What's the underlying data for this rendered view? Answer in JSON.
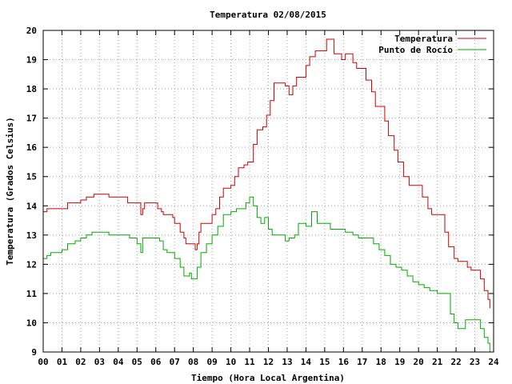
{
  "chart_data": {
    "type": "line",
    "title": "Temperatura 02/08/2015",
    "xlabel": "Tiempo (Hora Local Argentina)",
    "ylabel": "Temperatura (Grados Celsius)",
    "xlim": [
      0,
      24
    ],
    "ylim": [
      9,
      20
    ],
    "x_ticks": [
      "00",
      "01",
      "02",
      "03",
      "04",
      "05",
      "06",
      "07",
      "08",
      "09",
      "10",
      "11",
      "12",
      "13",
      "14",
      "15",
      "16",
      "17",
      "18",
      "19",
      "20",
      "21",
      "22",
      "23",
      "24"
    ],
    "y_ticks": [
      "9",
      "10",
      "11",
      "12",
      "13",
      "14",
      "15",
      "16",
      "17",
      "18",
      "19",
      "20"
    ],
    "grid": true,
    "legend_position": "top-right",
    "series": [
      {
        "name": "Temperatura",
        "color": "#cc0000",
        "points": [
          [
            0.0,
            13.8
          ],
          [
            0.2,
            13.9
          ],
          [
            0.5,
            13.9
          ],
          [
            1.0,
            13.9
          ],
          [
            1.3,
            14.1
          ],
          [
            1.8,
            14.1
          ],
          [
            2.0,
            14.2
          ],
          [
            2.3,
            14.3
          ],
          [
            2.7,
            14.4
          ],
          [
            3.0,
            14.4
          ],
          [
            3.4,
            14.4
          ],
          [
            3.5,
            14.3
          ],
          [
            4.0,
            14.3
          ],
          [
            4.4,
            14.3
          ],
          [
            4.5,
            14.1
          ],
          [
            5.0,
            14.1
          ],
          [
            5.2,
            13.7
          ],
          [
            5.3,
            13.9
          ],
          [
            5.4,
            14.1
          ],
          [
            5.6,
            14.1
          ],
          [
            6.0,
            14.1
          ],
          [
            6.1,
            13.9
          ],
          [
            6.3,
            13.8
          ],
          [
            6.4,
            13.7
          ],
          [
            6.9,
            13.6
          ],
          [
            7.0,
            13.4
          ],
          [
            7.3,
            13.1
          ],
          [
            7.5,
            12.9
          ],
          [
            7.6,
            12.7
          ],
          [
            8.0,
            12.7
          ],
          [
            8.1,
            12.5
          ],
          [
            8.2,
            12.7
          ],
          [
            8.3,
            13.1
          ],
          [
            8.4,
            13.4
          ],
          [
            8.8,
            13.4
          ],
          [
            9.0,
            13.7
          ],
          [
            9.2,
            13.9
          ],
          [
            9.4,
            14.3
          ],
          [
            9.6,
            14.6
          ],
          [
            10.0,
            14.7
          ],
          [
            10.2,
            15.0
          ],
          [
            10.4,
            15.3
          ],
          [
            10.7,
            15.4
          ],
          [
            10.9,
            15.5
          ],
          [
            11.2,
            16.1
          ],
          [
            11.4,
            16.6
          ],
          [
            11.7,
            16.7
          ],
          [
            11.9,
            17.1
          ],
          [
            12.1,
            17.6
          ],
          [
            12.3,
            18.2
          ],
          [
            12.6,
            18.2
          ],
          [
            12.9,
            18.1
          ],
          [
            13.1,
            17.8
          ],
          [
            13.3,
            18.1
          ],
          [
            13.5,
            18.4
          ],
          [
            13.8,
            18.4
          ],
          [
            14.0,
            18.8
          ],
          [
            14.2,
            19.1
          ],
          [
            14.5,
            19.3
          ],
          [
            14.8,
            19.3
          ],
          [
            15.0,
            19.3
          ],
          [
            15.1,
            19.7
          ],
          [
            15.3,
            19.7
          ],
          [
            15.5,
            19.2
          ],
          [
            15.7,
            19.2
          ],
          [
            15.9,
            19.0
          ],
          [
            16.1,
            19.2
          ],
          [
            16.3,
            19.2
          ],
          [
            16.5,
            18.9
          ],
          [
            16.7,
            18.7
          ],
          [
            17.0,
            18.7
          ],
          [
            17.2,
            18.3
          ],
          [
            17.5,
            17.9
          ],
          [
            17.7,
            17.4
          ],
          [
            18.0,
            17.4
          ],
          [
            18.2,
            16.9
          ],
          [
            18.4,
            16.4
          ],
          [
            18.7,
            15.9
          ],
          [
            18.9,
            15.5
          ],
          [
            19.2,
            15.0
          ],
          [
            19.5,
            14.7
          ],
          [
            20.0,
            14.7
          ],
          [
            20.2,
            14.3
          ],
          [
            20.5,
            13.9
          ],
          [
            20.7,
            13.7
          ],
          [
            21.2,
            13.7
          ],
          [
            21.4,
            13.1
          ],
          [
            21.6,
            12.6
          ],
          [
            21.9,
            12.2
          ],
          [
            22.1,
            12.1
          ],
          [
            22.5,
            12.1
          ],
          [
            22.6,
            11.9
          ],
          [
            22.8,
            11.8
          ],
          [
            23.2,
            11.8
          ],
          [
            23.3,
            11.5
          ],
          [
            23.5,
            11.1
          ],
          [
            23.7,
            10.8
          ],
          [
            23.8,
            10.5
          ]
        ]
      },
      {
        "name": "Punto de Rocío",
        "color": "#00aa00",
        "points": [
          [
            0.0,
            12.2
          ],
          [
            0.2,
            12.3
          ],
          [
            0.4,
            12.4
          ],
          [
            1.0,
            12.5
          ],
          [
            1.3,
            12.7
          ],
          [
            1.7,
            12.8
          ],
          [
            2.0,
            12.9
          ],
          [
            2.3,
            13.0
          ],
          [
            2.6,
            13.1
          ],
          [
            3.4,
            13.1
          ],
          [
            3.5,
            13.0
          ],
          [
            4.2,
            13.0
          ],
          [
            4.6,
            12.9
          ],
          [
            5.0,
            12.7
          ],
          [
            5.2,
            12.4
          ],
          [
            5.3,
            12.9
          ],
          [
            5.9,
            12.9
          ],
          [
            6.2,
            12.8
          ],
          [
            6.4,
            12.5
          ],
          [
            6.6,
            12.4
          ],
          [
            7.0,
            12.2
          ],
          [
            7.3,
            11.9
          ],
          [
            7.5,
            11.6
          ],
          [
            7.8,
            11.7
          ],
          [
            7.9,
            11.5
          ],
          [
            8.2,
            11.9
          ],
          [
            8.4,
            12.4
          ],
          [
            8.7,
            12.7
          ],
          [
            9.0,
            13.0
          ],
          [
            9.3,
            13.3
          ],
          [
            9.6,
            13.7
          ],
          [
            10.0,
            13.8
          ],
          [
            10.3,
            13.9
          ],
          [
            10.6,
            13.9
          ],
          [
            10.8,
            14.1
          ],
          [
            11.0,
            14.3
          ],
          [
            11.2,
            14.0
          ],
          [
            11.4,
            13.6
          ],
          [
            11.6,
            13.4
          ],
          [
            11.8,
            13.6
          ],
          [
            12.0,
            13.2
          ],
          [
            12.2,
            13.0
          ],
          [
            12.5,
            13.0
          ],
          [
            12.9,
            12.8
          ],
          [
            13.1,
            12.9
          ],
          [
            13.4,
            13.0
          ],
          [
            13.6,
            13.4
          ],
          [
            14.0,
            13.3
          ],
          [
            14.3,
            13.8
          ],
          [
            14.6,
            13.4
          ],
          [
            15.0,
            13.4
          ],
          [
            15.3,
            13.2
          ],
          [
            15.7,
            13.2
          ],
          [
            16.1,
            13.1
          ],
          [
            16.5,
            13.0
          ],
          [
            16.8,
            12.9
          ],
          [
            17.3,
            12.9
          ],
          [
            17.6,
            12.7
          ],
          [
            17.9,
            12.5
          ],
          [
            18.2,
            12.3
          ],
          [
            18.5,
            12.0
          ],
          [
            18.8,
            11.9
          ],
          [
            19.1,
            11.8
          ],
          [
            19.4,
            11.6
          ],
          [
            19.7,
            11.4
          ],
          [
            20.0,
            11.3
          ],
          [
            20.3,
            11.2
          ],
          [
            20.6,
            11.1
          ],
          [
            21.0,
            11.0
          ],
          [
            21.5,
            11.0
          ],
          [
            21.7,
            10.3
          ],
          [
            21.9,
            10.0
          ],
          [
            22.1,
            9.8
          ],
          [
            22.3,
            9.8
          ],
          [
            22.5,
            10.1
          ],
          [
            22.8,
            10.1
          ],
          [
            23.0,
            10.1
          ],
          [
            23.2,
            10.1
          ],
          [
            23.3,
            9.8
          ],
          [
            23.5,
            9.5
          ],
          [
            23.7,
            9.3
          ],
          [
            23.8,
            9.0
          ]
        ]
      }
    ]
  }
}
